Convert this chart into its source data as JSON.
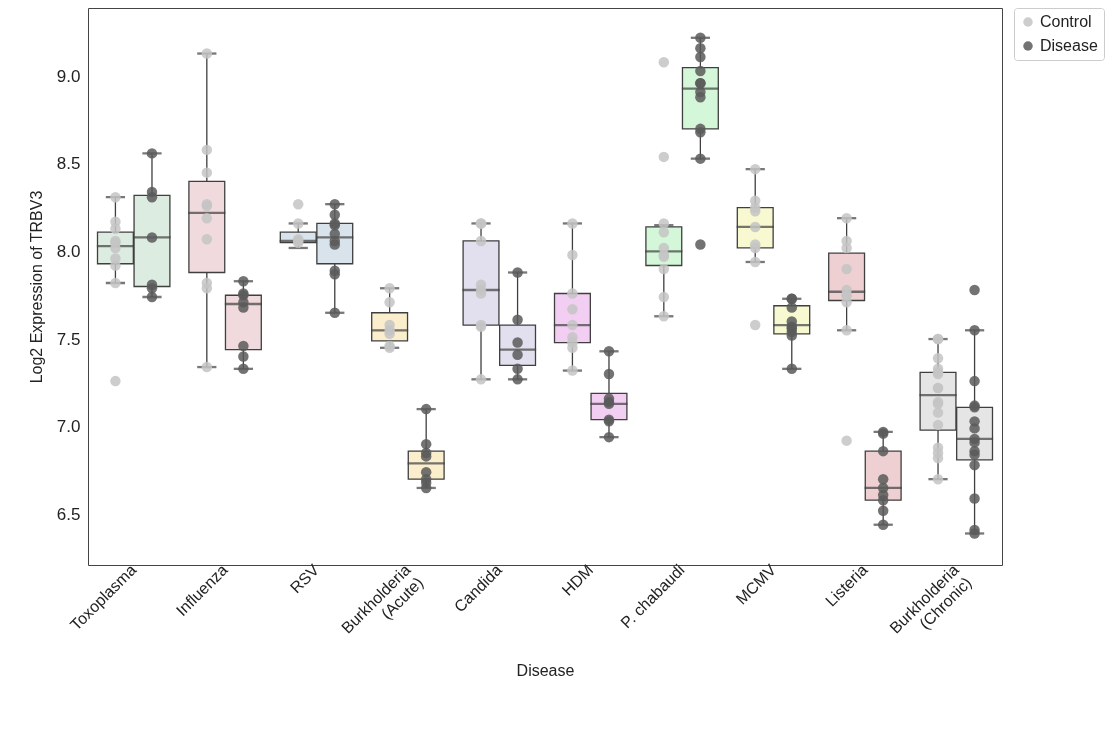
{
  "chart_data": {
    "type": "box",
    "xlabel": "Disease",
    "ylabel": "Log2 Expression of TRBV3",
    "categories": [
      "Toxoplasma",
      "Influenza",
      "RSV",
      "Burkholderia\n(Acute)",
      "Candida",
      "HDM",
      "P. chabaudi",
      "MCMV",
      "Listeria",
      "Burkholderia\n(Chronic)"
    ],
    "ylim": [
      6.21,
      9.39
    ],
    "yticks": [
      6.5,
      {
        "value": 7,
        "label": "7.0"
      },
      7.5,
      {
        "value": 8,
        "label": "8.0"
      },
      8.5,
      {
        "value": 9,
        "label": "9.0"
      }
    ],
    "grid": false,
    "legend": "top right",
    "marker": "circle",
    "series": [
      {
        "type": "box",
        "colors": [
          "#dcece0",
          "#f1dadd",
          "#d8e3ec",
          "#fbeecd",
          "#e2e0ee",
          "#f2cff2",
          "#d3f7d8",
          "#f8f9d1",
          "#eed0d2",
          "#e5e5e5"
        ],
        "boxes": [
          {
            "low": 7.82,
            "q1": 7.93,
            "median": 8.03,
            "q3": 8.11,
            "high": 8.31
          },
          {
            "low": 7.34,
            "q1": 7.88,
            "median": 8.22,
            "q3": 8.4,
            "high": 9.13
          },
          {
            "low": 8.02,
            "q1": 8.05,
            "median": 8.06,
            "q3": 8.11,
            "high": 8.16
          },
          {
            "low": 7.45,
            "q1": 7.49,
            "median": 7.55,
            "q3": 7.65,
            "high": 7.79
          },
          {
            "low": 7.27,
            "q1": 7.58,
            "median": 7.78,
            "q3": 8.06,
            "high": 8.16
          },
          {
            "low": 7.32,
            "q1": 7.48,
            "median": 7.58,
            "q3": 7.76,
            "high": 8.16
          },
          {
            "low": 7.63,
            "q1": 7.92,
            "median": 8.0,
            "q3": 8.14,
            "high": 8.15
          },
          {
            "low": 7.94,
            "q1": 8.02,
            "median": 8.14,
            "q3": 8.25,
            "high": 8.47
          },
          {
            "low": 7.55,
            "q1": 7.72,
            "median": 7.77,
            "q3": 7.99,
            "high": 8.19
          },
          {
            "low": 6.7,
            "q1": 6.98,
            "median": 7.18,
            "q3": 7.31,
            "high": 7.5
          }
        ]
      },
      {
        "type": "box",
        "colors": [
          "#dcece0",
          "#f1dadd",
          "#d8e3ec",
          "#fbeecd",
          "#e2e0ee",
          "#f2cff2",
          "#d3f7d8",
          "#f8f9d1",
          "#eed0d2",
          "#e5e5e5"
        ],
        "boxes": [
          {
            "low": 7.74,
            "q1": 7.8,
            "median": 8.08,
            "q3": 8.32,
            "high": 8.56
          },
          {
            "low": 7.33,
            "q1": 7.44,
            "median": 7.7,
            "q3": 7.75,
            "high": 7.83
          },
          {
            "low": 7.65,
            "q1": 7.93,
            "median": 8.08,
            "q3": 8.16,
            "high": 8.27
          },
          {
            "low": 6.65,
            "q1": 6.7,
            "median": 6.79,
            "q3": 6.86,
            "high": 7.1
          },
          {
            "low": 7.27,
            "q1": 7.35,
            "median": 7.44,
            "q3": 7.58,
            "high": 7.88
          },
          {
            "low": 6.94,
            "q1": 7.04,
            "median": 7.13,
            "q3": 7.19,
            "high": 7.43
          },
          {
            "low": 8.53,
            "q1": 8.7,
            "median": 8.93,
            "q3": 9.05,
            "high": 9.22
          },
          {
            "low": 7.33,
            "q1": 7.53,
            "median": 7.58,
            "q3": 7.69,
            "high": 7.73
          },
          {
            "low": 6.44,
            "q1": 6.58,
            "median": 6.65,
            "q3": 6.86,
            "high": 6.97
          },
          {
            "low": 6.39,
            "q1": 6.81,
            "median": 6.93,
            "q3": 7.11,
            "high": 7.55
          }
        ]
      },
      {
        "type": "scatter",
        "name": "Control",
        "color": "#c4c4c4",
        "x": [
          "Toxoplasma",
          "Toxoplasma",
          "Toxoplasma",
          "Toxoplasma",
          "Toxoplasma",
          "Toxoplasma",
          "Toxoplasma",
          "Toxoplasma",
          "Toxoplasma",
          "Toxoplasma",
          "Influenza",
          "Influenza",
          "Influenza",
          "Influenza",
          "Influenza",
          "Influenza",
          "Influenza",
          "Influenza",
          "Influenza",
          "Influenza",
          "RSV",
          "RSV",
          "RSV",
          "RSV",
          "RSV",
          "Burkholderia\n(Acute)",
          "Burkholderia\n(Acute)",
          "Burkholderia\n(Acute)",
          "Burkholderia\n(Acute)",
          "Burkholderia\n(Acute)",
          "Burkholderia\n(Acute)",
          "Burkholderia\n(Acute)",
          "Candida",
          "Candida",
          "Candida",
          "Candida",
          "Candida",
          "Candida",
          "Candida",
          "Candida",
          "Candida",
          "HDM",
          "HDM",
          "HDM",
          "HDM",
          "HDM",
          "HDM",
          "HDM",
          "HDM",
          "HDM",
          "P. chabaudi",
          "P. chabaudi",
          "P. chabaudi",
          "P. chabaudi",
          "P. chabaudi",
          "P. chabaudi",
          "P. chabaudi",
          "P. chabaudi",
          "P. chabaudi",
          "P. chabaudi",
          "MCMV",
          "MCMV",
          "MCMV",
          "MCMV",
          "MCMV",
          "MCMV",
          "MCMV",
          "MCMV",
          "MCMV",
          "Listeria",
          "Listeria",
          "Listeria",
          "Listeria",
          "Listeria",
          "Listeria",
          "Listeria",
          "Listeria",
          "Listeria",
          "Listeria",
          "Burkholderia\n(Chronic)",
          "Burkholderia\n(Chronic)",
          "Burkholderia\n(Chronic)",
          "Burkholderia\n(Chronic)",
          "Burkholderia\n(Chronic)",
          "Burkholderia\n(Chronic)",
          "Burkholderia\n(Chronic)",
          "Burkholderia\n(Chronic)",
          "Burkholderia\n(Chronic)",
          "Burkholderia\n(Chronic)",
          "Burkholderia\n(Chronic)",
          "Burkholderia\n(Chronic)",
          "Burkholderia\n(Chronic)",
          "Burkholderia\n(Chronic)",
          "Burkholderia\n(Chronic)",
          "Burkholderia\n(Chronic)"
        ],
        "values": [
          8.31,
          8.17,
          8.13,
          8.06,
          8.05,
          8.02,
          7.96,
          7.92,
          7.82,
          7.26,
          9.13,
          8.58,
          8.45,
          8.27,
          8.26,
          8.19,
          8.07,
          7.82,
          7.79,
          7.34,
          8.27,
          8.16,
          8.07,
          8.06,
          8.05,
          7.79,
          7.71,
          7.58,
          7.55,
          7.53,
          7.46,
          7.45,
          8.16,
          8.16,
          8.06,
          7.81,
          7.78,
          7.76,
          7.58,
          7.57,
          7.27,
          8.16,
          7.98,
          7.76,
          7.67,
          7.58,
          7.51,
          7.48,
          7.45,
          7.32,
          9.08,
          8.54,
          8.16,
          8.11,
          8.02,
          7.98,
          7.97,
          7.9,
          7.74,
          7.63,
          8.47,
          8.29,
          8.25,
          8.23,
          8.14,
          8.04,
          8.02,
          7.94,
          7.58,
          8.19,
          8.06,
          8.02,
          7.9,
          7.78,
          7.75,
          7.75,
          7.71,
          7.55,
          6.92,
          7.5,
          7.5,
          7.39,
          7.33,
          7.31,
          7.3,
          7.22,
          7.22,
          7.14,
          7.13,
          7.08,
          7.01,
          6.88,
          6.85,
          6.82,
          6.7
        ]
      },
      {
        "type": "scatter",
        "name": "Disease",
        "color": "#5a5a5a",
        "x": [
          "Toxoplasma",
          "Toxoplasma",
          "Toxoplasma",
          "Toxoplasma",
          "Toxoplasma",
          "Toxoplasma",
          "Toxoplasma",
          "Influenza",
          "Influenza",
          "Influenza",
          "Influenza",
          "Influenza",
          "Influenza",
          "Influenza",
          "Influenza",
          "RSV",
          "RSV",
          "RSV",
          "RSV",
          "RSV",
          "RSV",
          "RSV",
          "RSV",
          "RSV",
          "RSV",
          "Burkholderia\n(Acute)",
          "Burkholderia\n(Acute)",
          "Burkholderia\n(Acute)",
          "Burkholderia\n(Acute)",
          "Burkholderia\n(Acute)",
          "Burkholderia\n(Acute)",
          "Burkholderia\n(Acute)",
          "Burkholderia\n(Acute)",
          "Candida",
          "Candida",
          "Candida",
          "Candida",
          "Candida",
          "Candida",
          "HDM",
          "HDM",
          "HDM",
          "HDM",
          "HDM",
          "HDM",
          "HDM",
          "HDM",
          "P. chabaudi",
          "P. chabaudi",
          "P. chabaudi",
          "P. chabaudi",
          "P. chabaudi",
          "P. chabaudi",
          "P. chabaudi",
          "P. chabaudi",
          "P. chabaudi",
          "P. chabaudi",
          "P. chabaudi",
          "P. chabaudi",
          "MCMV",
          "MCMV",
          "MCMV",
          "MCMV",
          "MCMV",
          "MCMV",
          "MCMV",
          "MCMV",
          "MCMV",
          "Listeria",
          "Listeria",
          "Listeria",
          "Listeria",
          "Listeria",
          "Listeria",
          "Listeria",
          "Listeria",
          "Listeria",
          "Burkholderia\n(Chronic)",
          "Burkholderia\n(Chronic)",
          "Burkholderia\n(Chronic)",
          "Burkholderia\n(Chronic)",
          "Burkholderia\n(Chronic)",
          "Burkholderia\n(Chronic)",
          "Burkholderia\n(Chronic)",
          "Burkholderia\n(Chronic)",
          "Burkholderia\n(Chronic)",
          "Burkholderia\n(Chronic)",
          "Burkholderia\n(Chronic)",
          "Burkholderia\n(Chronic)",
          "Burkholderia\n(Chronic)",
          "Burkholderia\n(Chronic)",
          "Burkholderia\n(Chronic)"
        ],
        "values": [
          8.56,
          8.34,
          8.31,
          8.08,
          7.81,
          7.79,
          7.74,
          7.83,
          7.76,
          7.75,
          7.71,
          7.68,
          7.46,
          7.4,
          7.33,
          8.27,
          8.21,
          8.16,
          8.15,
          8.1,
          8.06,
          8.04,
          7.89,
          7.87,
          7.65,
          7.1,
          6.9,
          6.85,
          6.83,
          6.74,
          6.7,
          6.68,
          6.65,
          7.88,
          7.61,
          7.48,
          7.41,
          7.33,
          7.27,
          7.43,
          7.3,
          7.16,
          7.14,
          7.13,
          7.04,
          7.03,
          6.94,
          9.22,
          9.16,
          9.11,
          9.03,
          8.96,
          8.96,
          8.91,
          8.88,
          8.7,
          8.68,
          8.53,
          8.04,
          7.73,
          7.73,
          7.68,
          7.6,
          7.57,
          7.56,
          7.54,
          7.52,
          7.33,
          6.97,
          6.96,
          6.86,
          6.7,
          6.65,
          6.61,
          6.58,
          6.52,
          6.44,
          7.78,
          7.55,
          7.26,
          7.12,
          7.11,
          7.03,
          6.99,
          6.93,
          6.91,
          6.86,
          6.84,
          6.78,
          6.59,
          6.41,
          6.39
        ]
      }
    ]
  }
}
